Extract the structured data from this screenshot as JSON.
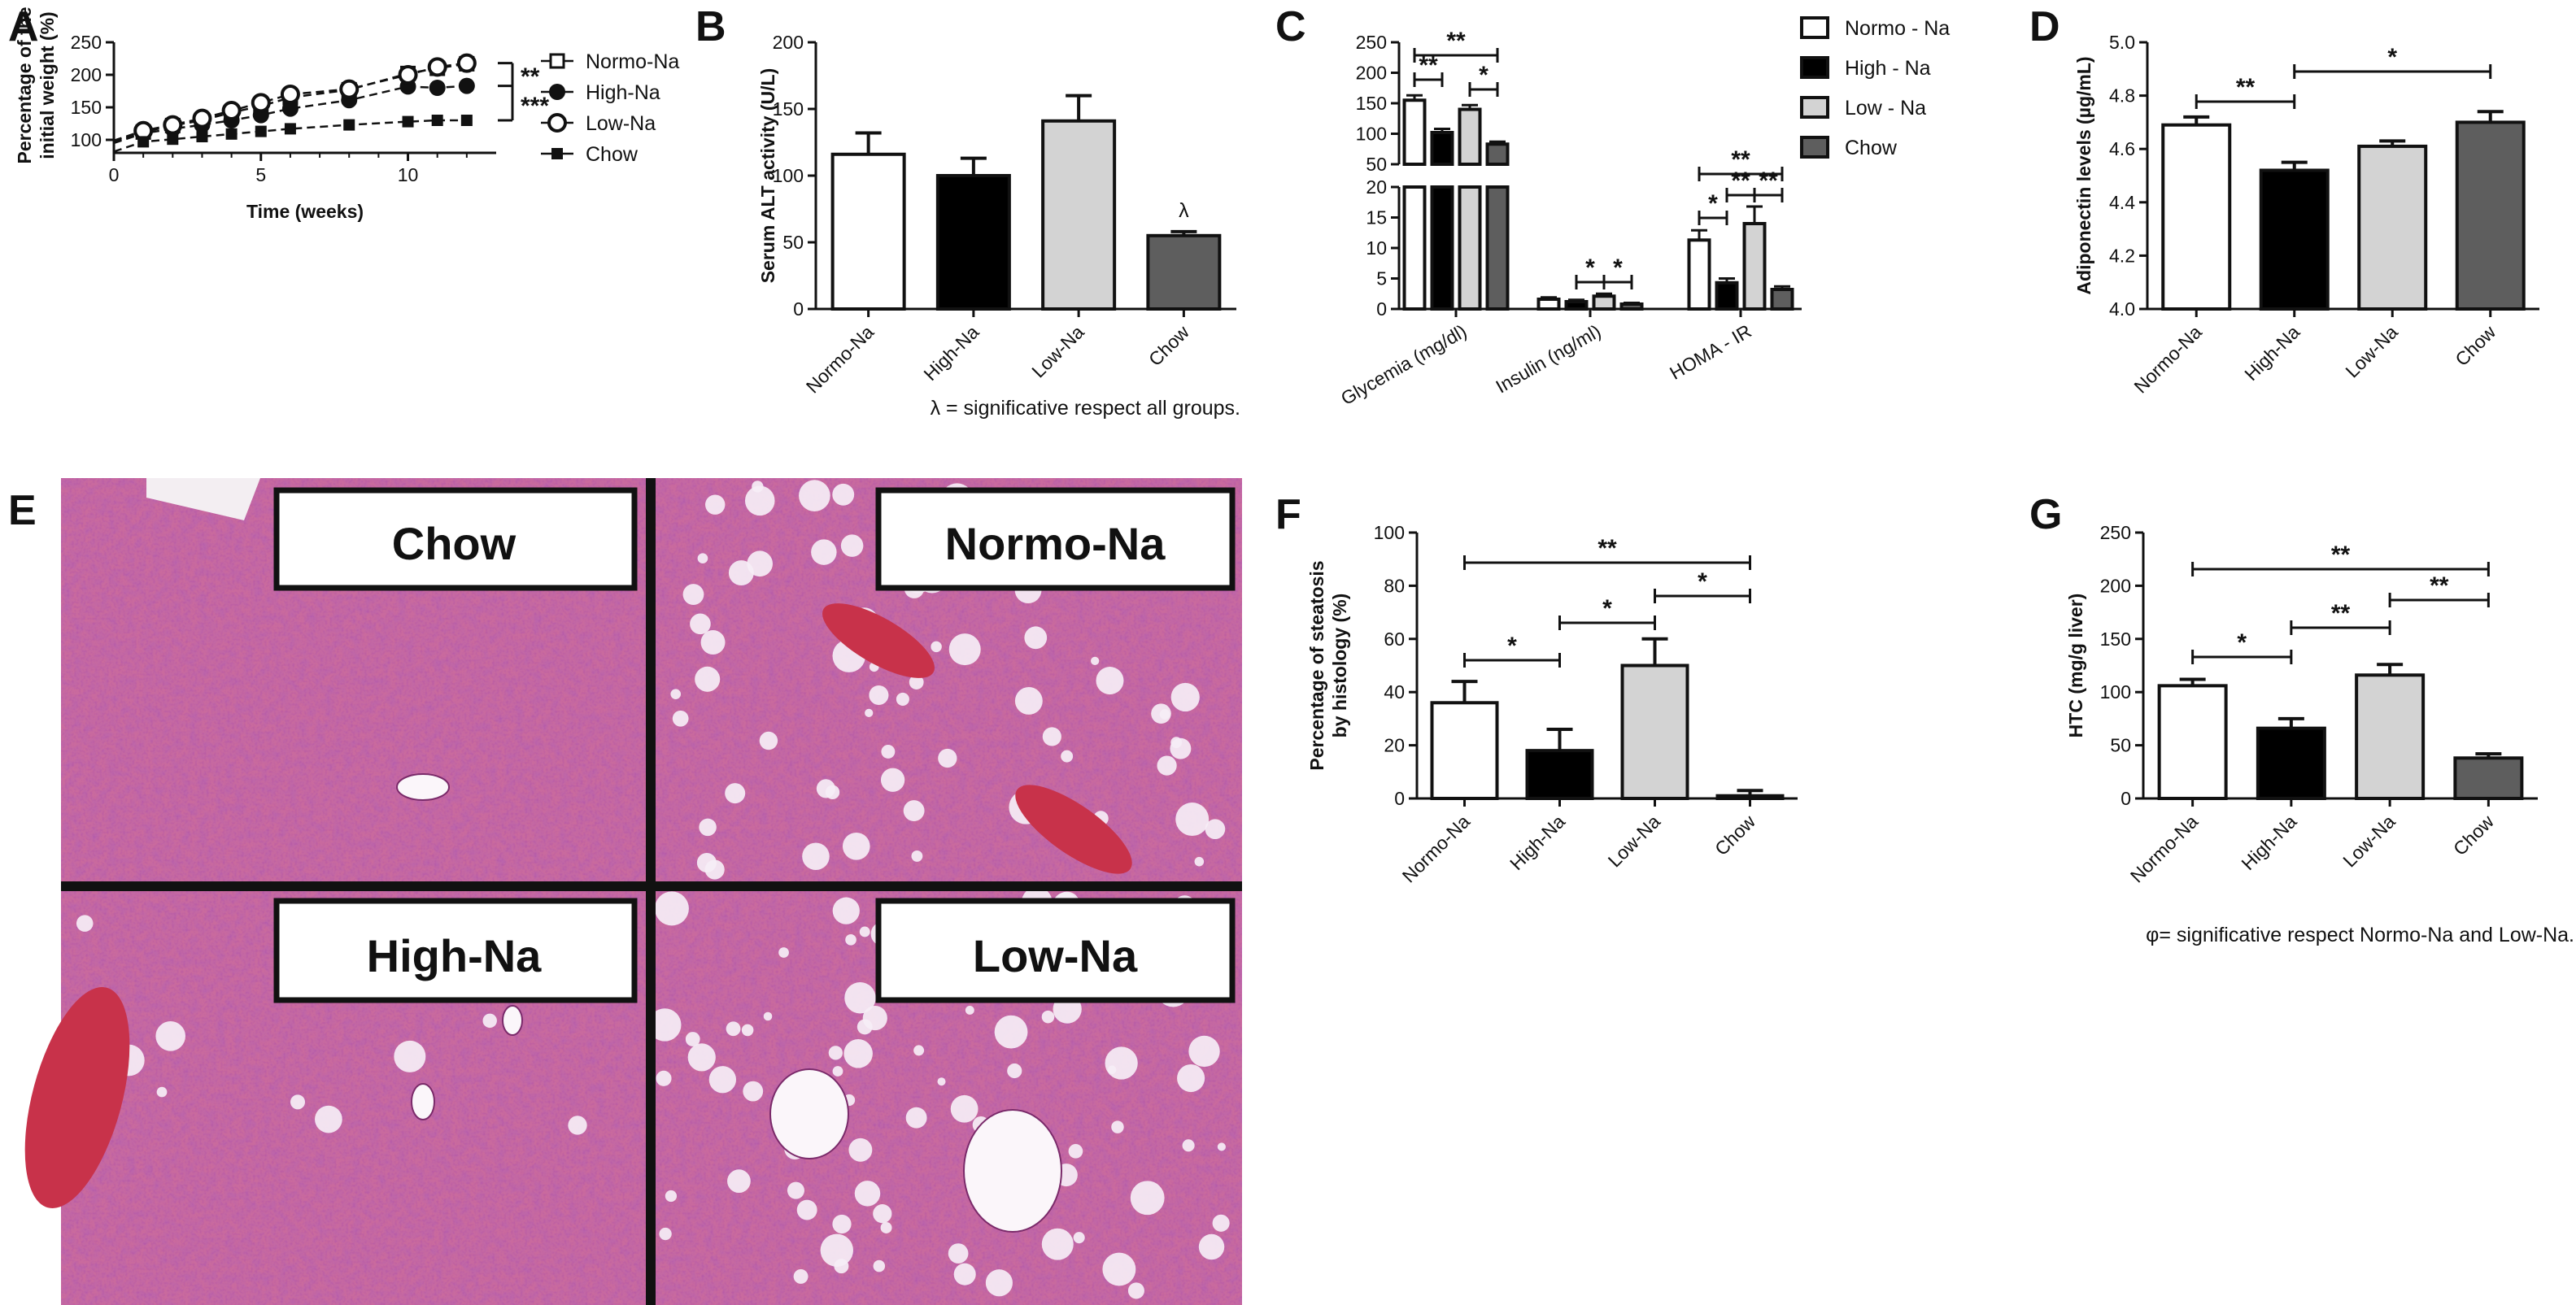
{
  "panels": {
    "A": {
      "label": "A",
      "chart_data": {
        "type": "line",
        "ylabel": "Percentage of the initial weight (%)",
        "xlabel": "Time (weeks)",
        "xlim": [
          0,
          13
        ],
        "ylim": [
          80,
          250
        ],
        "yticks": [
          100,
          150,
          200,
          250
        ],
        "xticks": [
          0,
          5,
          10
        ],
        "legend_position": "right",
        "series": [
          {
            "name": "Normo-Na",
            "marker": "square-open",
            "x": [
              1,
              2,
              3,
              4,
              5,
              6,
              8,
              10,
              11,
              12
            ],
            "y": [
              112,
              122,
              130,
              142,
              152,
              165,
              177,
              202,
              210,
              217
            ]
          },
          {
            "name": "High-Na",
            "marker": "circle-filled",
            "x": [
              1,
              2,
              3,
              4,
              5,
              6,
              8,
              10,
              11,
              12
            ],
            "y": [
              110,
              117,
              123,
              130,
              138,
              148,
              161,
              182,
              180,
              183
            ]
          },
          {
            "name": "Low-Na",
            "marker": "circle-open",
            "x": [
              1,
              2,
              3,
              4,
              5,
              6,
              8,
              10,
              11,
              12
            ],
            "y": [
              114,
              123,
              133,
              145,
              157,
              170,
              178,
              200,
              212,
              218
            ]
          },
          {
            "name": "Chow",
            "marker": "square-filled",
            "x": [
              1,
              2,
              3,
              4,
              5,
              6,
              8,
              10,
              11,
              12
            ],
            "y": [
              97,
              101,
              105,
              109,
              113,
              117,
              123,
              128,
              130,
              130
            ]
          }
        ],
        "significance": [
          "**",
          "***"
        ]
      }
    },
    "B": {
      "label": "B",
      "chart_data": {
        "type": "bar",
        "ylabel": "Serum ALT activity (U/L)",
        "categories": [
          "Normo-Na",
          "High-Na",
          "Low-Na",
          "Chow"
        ],
        "values": [
          116,
          100,
          141,
          55
        ],
        "errors": [
          16,
          13,
          19,
          3
        ],
        "colors": [
          "#ffffff",
          "#000000",
          "#d3d3d3",
          "#5e5e5e"
        ],
        "ylim": [
          0,
          200
        ],
        "yticks": [
          0,
          50,
          100,
          150,
          200
        ],
        "annotation": "λ",
        "note": "λ = significative respect all groups."
      }
    },
    "C": {
      "label": "C",
      "chart_data": {
        "type": "bar",
        "groups": [
          "Glycemia (mg/dl)",
          "Insulin (ng/ml)",
          "HOMA - IR"
        ],
        "series": [
          {
            "name": "Normo - Na",
            "values": [
              155,
              1.6,
              11.3
            ],
            "errors": [
              8,
              0.3,
              1.6
            ]
          },
          {
            "name": "High - Na",
            "values": [
              102,
              1.2,
              4.3
            ],
            "errors": [
              6,
              0.3,
              0.7
            ]
          },
          {
            "name": "Low - Na",
            "values": [
              140,
              2.1,
              14.0
            ],
            "errors": [
              7,
              0.4,
              2.8
            ]
          },
          {
            "name": "Chow",
            "values": [
              83,
              0.8,
              3.2
            ],
            "errors": [
              4,
              0.2,
              0.5
            ]
          }
        ],
        "colors": [
          "#ffffff",
          "#000000",
          "#d3d3d3",
          "#5e5e5e"
        ],
        "broken_axis": true,
        "yticks_lower": [
          0,
          5,
          10,
          15,
          20
        ],
        "yticks_upper": [
          50,
          100,
          150,
          200,
          250
        ],
        "significance": [
          "**",
          "**",
          "*",
          "*",
          "*",
          "**",
          "*",
          "**",
          "**"
        ]
      }
    },
    "D": {
      "label": "D",
      "chart_data": {
        "type": "bar",
        "ylabel": "Adiponectin levels (µg/mL)",
        "categories": [
          "Normo-Na",
          "High-Na",
          "Low-Na",
          "Chow"
        ],
        "values": [
          4.69,
          4.52,
          4.61,
          4.7
        ],
        "errors": [
          0.03,
          0.03,
          0.02,
          0.04
        ],
        "colors": [
          "#ffffff",
          "#000000",
          "#d3d3d3",
          "#5e5e5e"
        ],
        "ylim": [
          4.0,
          5.0
        ],
        "yticks": [
          "4.0",
          "4.2",
          "4.4",
          "4.6",
          "4.8",
          "5.0"
        ],
        "significance": [
          "**",
          "*"
        ]
      }
    },
    "E": {
      "label": "E",
      "images": [
        "Chow",
        "Normo-Na",
        "High-Na",
        "Low-Na"
      ]
    },
    "F": {
      "label": "F",
      "chart_data": {
        "type": "bar",
        "ylabel": "Percentage of steatosis by histology (%)",
        "categories": [
          "Normo-Na",
          "High-Na",
          "Low-Na",
          "Chow"
        ],
        "values": [
          36,
          18,
          50,
          1
        ],
        "errors": [
          8,
          8,
          10,
          2
        ],
        "colors": [
          "#ffffff",
          "#000000",
          "#d3d3d3",
          "#5e5e5e"
        ],
        "ylim": [
          0,
          100
        ],
        "yticks": [
          0,
          20,
          40,
          60,
          80,
          100
        ],
        "significance": [
          "**",
          "*",
          "*",
          "*"
        ]
      }
    },
    "G": {
      "label": "G",
      "chart_data": {
        "type": "bar",
        "ylabel": "HTC (mg/g liver)",
        "categories": [
          "Normo-Na",
          "High-Na",
          "Low-Na",
          "Chow"
        ],
        "values": [
          106,
          66,
          116,
          38
        ],
        "errors": [
          6,
          9,
          10,
          4
        ],
        "colors": [
          "#ffffff",
          "#000000",
          "#d3d3d3",
          "#5e5e5e"
        ],
        "ylim": [
          0,
          250
        ],
        "yticks": [
          0,
          50,
          100,
          150,
          200,
          250
        ],
        "significance": [
          "**",
          "*",
          "**",
          "**"
        ],
        "note": "φ= significative respect Normo-Na and Low-Na."
      }
    }
  }
}
